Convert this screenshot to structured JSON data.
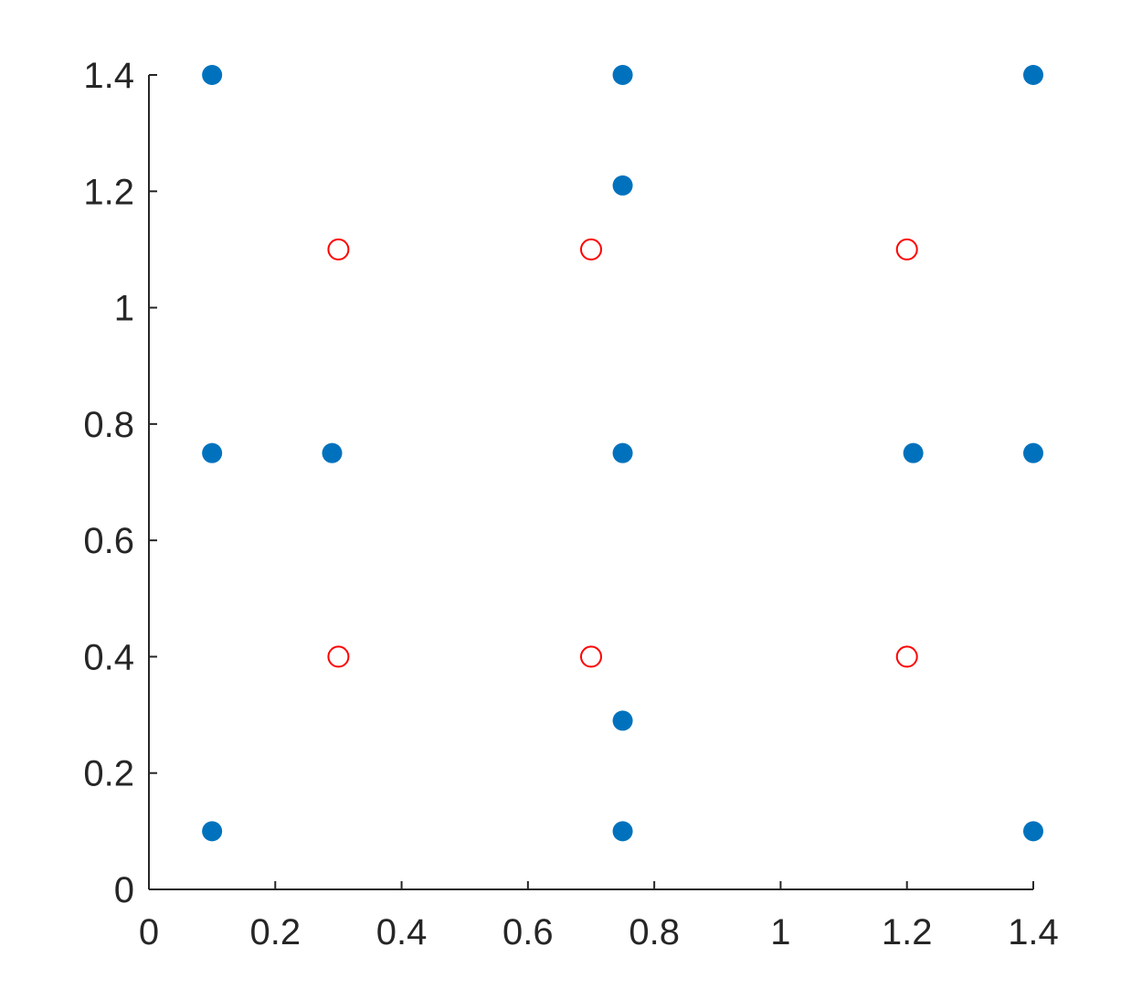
{
  "chart_data": {
    "type": "scatter",
    "title": "",
    "xlabel": "",
    "ylabel": "",
    "xlim": [
      0,
      1.4
    ],
    "ylim": [
      0,
      1.4
    ],
    "grid": false,
    "x_ticks": [
      "0",
      "0.2",
      "0.4",
      "0.6",
      "0.8",
      "1",
      "1.2",
      "1.4"
    ],
    "y_ticks": [
      "0",
      "0.2",
      "0.4",
      "0.6",
      "0.8",
      "1",
      "1.2",
      "1.4"
    ],
    "series": [
      {
        "marker": "filled-circle",
        "color": "#0072BD",
        "points": [
          {
            "x": 0.1,
            "y": 1.4
          },
          {
            "x": 0.75,
            "y": 1.4
          },
          {
            "x": 1.4,
            "y": 1.4
          },
          {
            "x": 0.75,
            "y": 1.21
          },
          {
            "x": 0.1,
            "y": 0.75
          },
          {
            "x": 0.29,
            "y": 0.75
          },
          {
            "x": 0.75,
            "y": 0.75
          },
          {
            "x": 1.21,
            "y": 0.75
          },
          {
            "x": 1.4,
            "y": 0.75
          },
          {
            "x": 0.75,
            "y": 0.29
          },
          {
            "x": 0.1,
            "y": 0.1
          },
          {
            "x": 0.75,
            "y": 0.1
          },
          {
            "x": 1.4,
            "y": 0.1
          }
        ]
      },
      {
        "marker": "open-circle",
        "color": "#FF0000",
        "points": [
          {
            "x": 0.3,
            "y": 1.1
          },
          {
            "x": 0.7,
            "y": 1.1
          },
          {
            "x": 1.2,
            "y": 1.1
          },
          {
            "x": 0.3,
            "y": 0.4
          },
          {
            "x": 0.7,
            "y": 0.4
          },
          {
            "x": 1.2,
            "y": 0.4
          }
        ]
      }
    ]
  }
}
